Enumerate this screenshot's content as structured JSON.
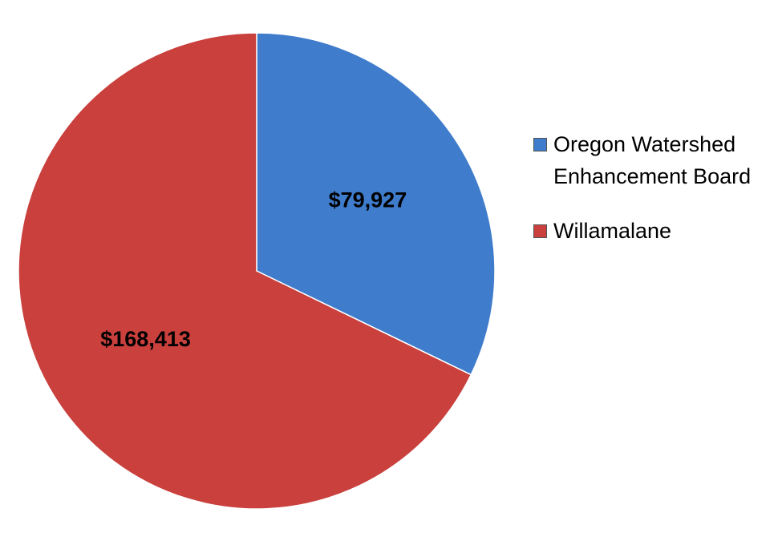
{
  "chart_data": {
    "type": "pie",
    "categories": [
      "Oregon Watershed Enhancement Board",
      "Willamalane"
    ],
    "values": [
      79927,
      168413
    ],
    "value_labels": [
      "$79,927",
      "$168,413"
    ],
    "colors": [
      "#3f7ccb",
      "#c9403d"
    ],
    "legend": "right"
  }
}
